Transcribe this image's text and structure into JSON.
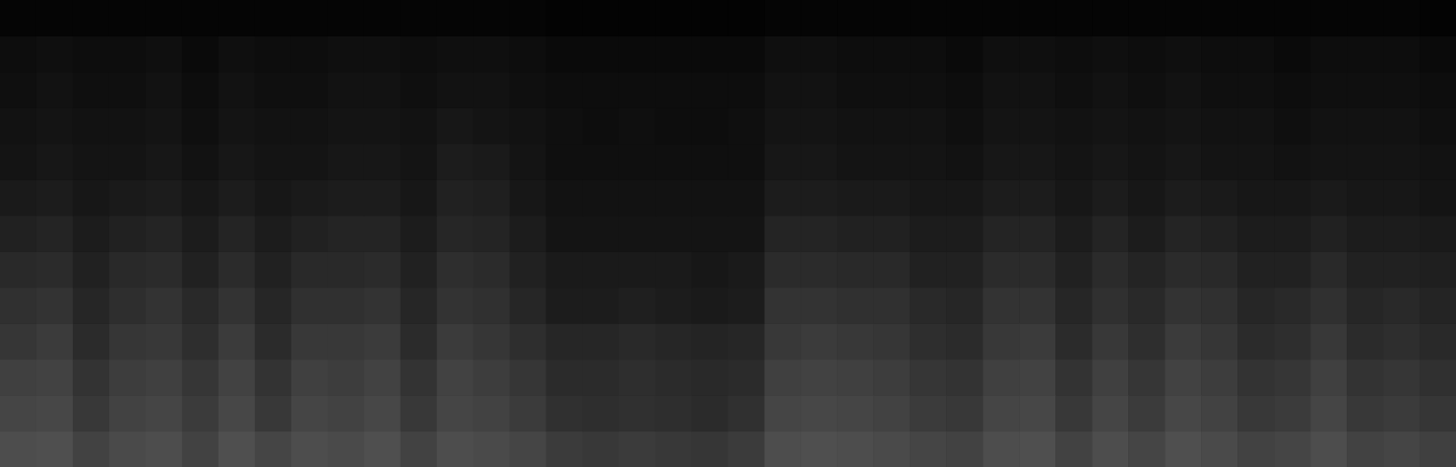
{
  "chart_data": {
    "type": "heatmap",
    "tick_labels": false,
    "zlim": [
      0,
      100
    ],
    "z": [
      [
        30,
        31,
        26,
        29,
        30,
        26,
        31,
        27,
        30,
        29,
        31,
        26,
        30,
        29,
        27,
        23,
        22,
        23,
        22,
        21,
        23,
        30,
        31,
        30,
        29,
        27,
        26,
        30,
        31,
        26,
        30,
        27,
        31,
        29,
        26,
        27,
        30,
        26,
        27,
        25
      ],
      [
        27,
        28,
        22,
        26,
        27,
        23,
        28,
        22,
        27,
        26,
        28,
        22,
        27,
        26,
        23,
        19,
        18,
        19,
        18,
        17,
        19,
        27,
        28,
        27,
        26,
        23,
        22,
        27,
        28,
        22,
        27,
        23,
        28,
        26,
        22,
        23,
        27,
        22,
        23,
        21
      ],
      [
        25,
        26,
        20,
        24,
        25,
        21,
        26,
        20,
        25,
        24,
        26,
        20,
        26,
        24,
        21,
        17,
        17,
        18,
        17,
        16,
        17,
        25,
        26,
        25,
        24,
        21,
        20,
        25,
        26,
        20,
        25,
        21,
        26,
        24,
        20,
        21,
        25,
        20,
        21,
        19
      ],
      [
        21,
        23,
        17,
        21,
        22,
        18,
        23,
        17,
        22,
        22,
        23,
        17,
        23,
        21,
        18,
        15,
        15,
        16,
        15,
        14,
        15,
        22,
        23,
        22,
        21,
        18,
        17,
        22,
        23,
        17,
        22,
        18,
        23,
        21,
        17,
        18,
        22,
        17,
        18,
        16
      ],
      [
        19,
        20,
        15,
        18,
        20,
        16,
        20,
        15,
        19,
        19,
        20,
        15,
        20,
        19,
        15,
        11,
        11,
        12,
        11,
        10,
        11,
        20,
        20,
        19,
        19,
        16,
        15,
        20,
        20,
        15,
        19,
        16,
        20,
        19,
        15,
        16,
        19,
        15,
        16,
        14
      ],
      [
        16,
        17,
        13,
        16,
        17,
        13,
        17,
        13,
        16,
        16,
        17,
        13,
        18,
        17,
        13,
        10,
        10,
        10,
        10,
        9,
        10,
        17,
        17,
        16,
        16,
        13,
        13,
        17,
        17,
        13,
        17,
        14,
        17,
        16,
        13,
        13,
        16,
        13,
        13,
        12
      ],
      [
        13,
        14,
        11,
        13,
        14,
        11,
        14,
        11,
        13,
        14,
        14,
        11,
        15,
        14,
        11,
        8,
        8,
        8,
        8,
        8,
        8,
        14,
        14,
        13,
        13,
        11,
        11,
        14,
        14,
        11,
        14,
        11,
        14,
        13,
        11,
        11,
        13,
        11,
        11,
        10
      ],
      [
        10,
        11,
        9,
        10,
        11,
        9,
        11,
        9,
        10,
        11,
        11,
        9,
        13,
        12,
        9,
        7,
        7,
        7,
        7,
        7,
        7,
        11,
        11,
        10,
        10,
        9,
        9,
        11,
        11,
        9,
        11,
        9,
        11,
        10,
        9,
        9,
        10,
        9,
        9,
        8
      ],
      [
        8,
        9,
        8,
        8,
        9,
        7,
        9,
        8,
        8,
        9,
        9,
        8,
        11,
        10,
        8,
        6,
        6,
        6,
        6,
        6,
        6,
        9,
        9,
        8,
        8,
        8,
        7,
        9,
        9,
        8,
        9,
        8,
        9,
        8,
        8,
        7,
        8,
        8,
        8,
        7
      ],
      [
        7,
        8,
        7,
        7,
        8,
        6,
        8,
        7,
        7,
        8,
        8,
        7,
        9,
        8,
        7,
        6,
        5,
        6,
        5,
        5,
        6,
        8,
        8,
        7,
        7,
        7,
        6,
        8,
        8,
        7,
        8,
        7,
        8,
        7,
        7,
        6,
        7,
        7,
        7,
        6
      ],
      [
        6,
        7,
        6,
        6,
        7,
        5,
        7,
        6,
        6,
        7,
        7,
        6,
        7,
        7,
        6,
        5,
        5,
        5,
        5,
        5,
        5,
        7,
        7,
        6,
        6,
        6,
        5,
        7,
        7,
        6,
        7,
        6,
        7,
        6,
        6,
        5,
        6,
        6,
        6,
        5
      ],
      [
        5,
        6,
        5,
        5,
        6,
        4,
        6,
        5,
        5,
        6,
        6,
        5,
        6,
        6,
        5,
        4,
        4,
        4,
        4,
        4,
        4,
        6,
        6,
        5,
        5,
        5,
        4,
        6,
        6,
        5,
        6,
        5,
        6,
        5,
        5,
        4,
        5,
        5,
        5,
        4
      ],
      [
        2,
        2,
        2,
        2,
        2,
        2,
        2,
        2,
        2,
        2,
        2,
        2,
        2,
        2,
        2,
        1,
        1,
        1,
        1,
        1,
        1,
        2,
        2,
        2,
        2,
        2,
        2,
        2,
        2,
        2,
        2,
        2,
        2,
        2,
        2,
        2,
        2,
        2,
        2,
        1
      ]
    ]
  }
}
